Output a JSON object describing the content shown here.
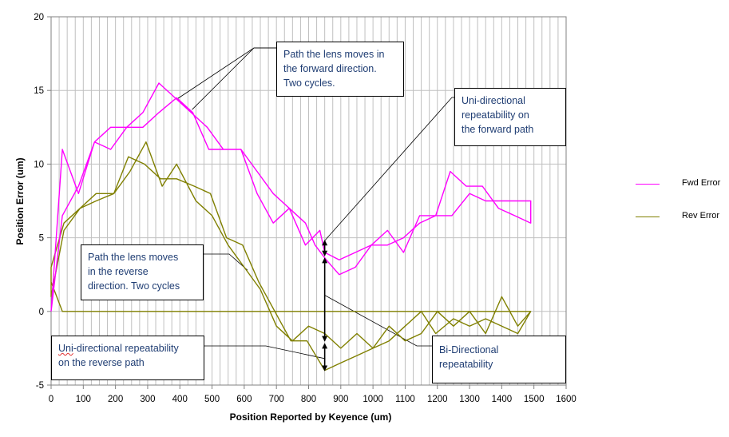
{
  "chart_data": {
    "type": "line",
    "xlabel": "Position Reported by Keyence (um)",
    "ylabel": "Position Error (um)",
    "xlim": [
      0,
      1600
    ],
    "ylim": [
      -5,
      20
    ],
    "xticks": [
      0,
      100,
      200,
      300,
      400,
      500,
      600,
      700,
      800,
      900,
      1000,
      1100,
      1200,
      1300,
      1400,
      1500,
      1600
    ],
    "yticks": [
      -5,
      0,
      5,
      10,
      15,
      20
    ],
    "x_minor_step": 25,
    "series": [
      {
        "name": "Fwd Error",
        "color": "#ff00ff",
        "points": [
          [
            0,
            0
          ],
          [
            35,
            11
          ],
          [
            85,
            8
          ],
          [
            135,
            11.5
          ],
          [
            185,
            11
          ],
          [
            235,
            12.5
          ],
          [
            285,
            13.5
          ],
          [
            335,
            15.5
          ],
          [
            385,
            14.5
          ],
          [
            435,
            13.5
          ],
          [
            485,
            12.5
          ],
          [
            535,
            11
          ],
          [
            590,
            11
          ],
          [
            640,
            8
          ],
          [
            690,
            6
          ],
          [
            740,
            7
          ],
          [
            790,
            4.5
          ],
          [
            835,
            5.5
          ],
          [
            850,
            4
          ],
          [
            895,
            3.5
          ],
          [
            945,
            4
          ],
          [
            995,
            4.5
          ],
          [
            1045,
            5.5
          ],
          [
            1095,
            4
          ],
          [
            1145,
            6.5
          ],
          [
            1195,
            6.5
          ],
          [
            1240,
            9.5
          ],
          [
            1290,
            8.5
          ],
          [
            1340,
            8.5
          ],
          [
            1390,
            7
          ],
          [
            1440,
            6.5
          ],
          [
            1490,
            6
          ],
          [
            1490,
            7.5
          ],
          [
            1450,
            7.5
          ],
          [
            1400,
            7.5
          ],
          [
            1350,
            7.5
          ],
          [
            1300,
            8
          ],
          [
            1245,
            6.5
          ],
          [
            1195,
            6.5
          ],
          [
            1145,
            6
          ],
          [
            1095,
            5
          ],
          [
            1045,
            4.5
          ],
          [
            995,
            4.5
          ],
          [
            945,
            3
          ],
          [
            895,
            2.5
          ],
          [
            855,
            3.5
          ],
          [
            820,
            4.5
          ],
          [
            790,
            6
          ],
          [
            740,
            7
          ],
          [
            690,
            8
          ],
          [
            640,
            9.5
          ],
          [
            590,
            11
          ],
          [
            540,
            11
          ],
          [
            490,
            11
          ],
          [
            440,
            13.5
          ],
          [
            390,
            14.5
          ],
          [
            335,
            13.5
          ],
          [
            285,
            12.5
          ],
          [
            235,
            12.5
          ],
          [
            185,
            12.5
          ],
          [
            135,
            11.5
          ],
          [
            85,
            8.5
          ],
          [
            35,
            6.5
          ],
          [
            0,
            0
          ]
        ]
      },
      {
        "name": "Rev Error",
        "color": "#808000",
        "points": [
          [
            0,
            2
          ],
          [
            35,
            0
          ],
          [
            1490,
            0
          ],
          [
            1450,
            -1
          ],
          [
            1400,
            1
          ],
          [
            1350,
            -1.5
          ],
          [
            1300,
            0
          ],
          [
            1250,
            -1
          ],
          [
            1200,
            0
          ],
          [
            1150,
            -1.5
          ],
          [
            1100,
            -2
          ],
          [
            1050,
            -1
          ],
          [
            1000,
            -2.5
          ],
          [
            950,
            -1.5
          ],
          [
            900,
            -2.5
          ],
          [
            850,
            -1.5
          ],
          [
            800,
            -1
          ],
          [
            750,
            -2
          ],
          [
            700,
            -1
          ],
          [
            650,
            1.5
          ],
          [
            600,
            3
          ],
          [
            550,
            4.5
          ],
          [
            500,
            6.5
          ],
          [
            450,
            7.5
          ],
          [
            390,
            10
          ],
          [
            345,
            8.5
          ],
          [
            295,
            11.5
          ],
          [
            245,
            9.5
          ],
          [
            195,
            8
          ],
          [
            140,
            7.5
          ],
          [
            90,
            7
          ],
          [
            40,
            6
          ],
          [
            0,
            3
          ],
          [
            0,
            1
          ],
          [
            40,
            5.5
          ],
          [
            90,
            7
          ],
          [
            140,
            8
          ],
          [
            195,
            8
          ],
          [
            240,
            10.5
          ],
          [
            290,
            10
          ],
          [
            340,
            9
          ],
          [
            390,
            9
          ],
          [
            445,
            8.5
          ],
          [
            495,
            8
          ],
          [
            545,
            5
          ],
          [
            595,
            4.5
          ],
          [
            645,
            2
          ],
          [
            695,
            0
          ],
          [
            745,
            -2
          ],
          [
            795,
            -2
          ],
          [
            850,
            -4
          ],
          [
            900,
            -3.5
          ],
          [
            950,
            -3
          ],
          [
            1000,
            -2.5
          ],
          [
            1050,
            -2
          ],
          [
            1100,
            -1
          ],
          [
            1150,
            0
          ],
          [
            1195,
            -1.5
          ],
          [
            1250,
            -0.5
          ],
          [
            1300,
            -1
          ],
          [
            1350,
            -0.5
          ],
          [
            1400,
            -1
          ],
          [
            1450,
            -1.5
          ],
          [
            1490,
            0
          ]
        ]
      }
    ],
    "legend": {
      "placement": "right",
      "entries": [
        {
          "label": "Fwd Error",
          "color": "#ff00ff"
        },
        {
          "label": "Rev Error",
          "color": "#808000"
        }
      ]
    },
    "annotations": {
      "fwd_path": [
        "Path the lens moves in",
        "the forward direction.",
        "Two cycles."
      ],
      "uni_fwd": [
        "Uni-directional",
        "repeatability on",
        "the forward path"
      ],
      "rev_path": [
        "Path the lens moves",
        "in the reverse",
        "direction. Two cycles"
      ],
      "uni_rev_prefix": "Uni",
      "uni_rev_rest": "-directional repeatability",
      "uni_rev_line2": "on the reverse path",
      "bi": [
        "Bi-Directional",
        "repeatability"
      ]
    }
  }
}
